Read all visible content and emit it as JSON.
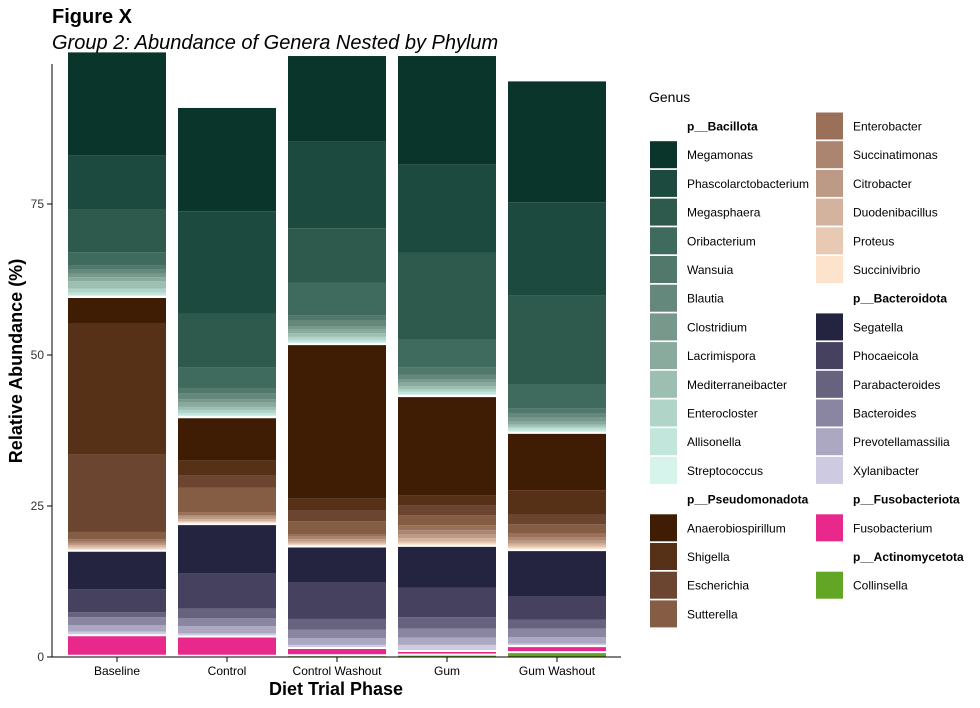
{
  "figure_tag": "Figure X",
  "chart_data": {
    "type": "bar",
    "stacked": true,
    "title": "Group 2: Abundance of Genera Nested by Phylum",
    "xlabel": "Diet Trial Phase",
    "ylabel": "Relative Abundance (%)",
    "ylim": [
      0,
      98
    ],
    "yticks": [
      0,
      25,
      50,
      75
    ],
    "grid": false,
    "legend_position": "right",
    "legend_title": "Genus",
    "categories": [
      "Baseline",
      "Control",
      "Control Washout",
      "Gum",
      "Gum Washout"
    ],
    "phyla": [
      {
        "name": "p__Bacillota",
        "genera": [
          {
            "name": "Megamonas",
            "color": "#09352a"
          },
          {
            "name": "Phascolarctobacterium",
            "color": "#1c4a3e"
          },
          {
            "name": "Megasphaera",
            "color": "#2e5a4e"
          },
          {
            "name": "Oribacterium",
            "color": "#3f6b5e"
          },
          {
            "name": "Wansuia",
            "color": "#52786c"
          },
          {
            "name": "Blautia",
            "color": "#65887c"
          },
          {
            "name": "Clostridium",
            "color": "#78988c"
          },
          {
            "name": "Lacrimispora",
            "color": "#89ab9d"
          },
          {
            "name": "Mediterraneibacter",
            "color": "#9cbfb2"
          },
          {
            "name": "Enterocloster",
            "color": "#b1d4c9"
          },
          {
            "name": "Allisonella",
            "color": "#c3e6dc"
          },
          {
            "name": "Streptococcus",
            "color": "#d6f4ec"
          }
        ]
      },
      {
        "name": "p__Pseudomonadota",
        "genera": [
          {
            "name": "Anaerobiospirillum",
            "color": "#3f1c04"
          },
          {
            "name": "Shigella",
            "color": "#573018"
          },
          {
            "name": "Escherichia",
            "color": "#6c4530"
          },
          {
            "name": "Sutterella",
            "color": "#855d45"
          },
          {
            "name": "Enterobacter",
            "color": "#9a7158"
          },
          {
            "name": "Succinatimonas",
            "color": "#ab8570"
          },
          {
            "name": "Citrobacter",
            "color": "#bd9a85"
          },
          {
            "name": "Duodenibacillus",
            "color": "#d3b29e"
          },
          {
            "name": "Proteus",
            "color": "#e8c9b4"
          },
          {
            "name": "Succinivibrio",
            "color": "#fde2cc"
          }
        ]
      },
      {
        "name": "p__Bacteroidota",
        "genera": [
          {
            "name": "Segatella",
            "color": "#242340"
          },
          {
            "name": "Phocaeicola",
            "color": "#46415e"
          },
          {
            "name": "Parabacteroides",
            "color": "#67627e"
          },
          {
            "name": "Bacteroides",
            "color": "#8a85a1"
          },
          {
            "name": "Prevotellamassilia",
            "color": "#ada8c2"
          },
          {
            "name": "Xylanibacter",
            "color": "#cdcae2"
          }
        ]
      },
      {
        "name": "p__Fusobacteriota",
        "genera": [
          {
            "name": "Fusobacterium",
            "color": "#e8288a"
          }
        ]
      },
      {
        "name": "p__Actinomycetota",
        "genera": [
          {
            "name": "Collinsella",
            "color": "#63a524"
          }
        ]
      }
    ],
    "series": {
      "Collinsella": [
        0.2,
        0.2,
        0.3,
        0.4,
        0.8
      ],
      "Fusobacterium": [
        3.4,
        3.2,
        1.2,
        0.6,
        1.0
      ],
      "Xylanibacter": [
        0.6,
        0.5,
        0.5,
        1.0,
        0.4
      ],
      "Prevotellamassilia": [
        1.1,
        1.2,
        1.1,
        1.2,
        1.1
      ],
      "Bacteroides": [
        1.3,
        1.3,
        1.4,
        1.5,
        1.4
      ],
      "Parabacteroides": [
        0.8,
        1.6,
        1.8,
        1.9,
        1.5
      ],
      "Phocaeicola": [
        3.8,
        5.9,
        6.0,
        4.9,
        3.9
      ],
      "Segatella": [
        6.4,
        8.1,
        6.0,
        6.9,
        7.6
      ],
      "Succinivibrio": [
        0.3,
        0.3,
        0.3,
        0.4,
        0.4
      ],
      "Proteus": [
        0.3,
        0.2,
        0.2,
        0.3,
        0.3
      ],
      "Duodenibacillus": [
        0.3,
        0.3,
        0.3,
        0.6,
        0.4
      ],
      "Citrobacter": [
        0.3,
        0.4,
        0.4,
        0.6,
        0.5
      ],
      "Succinatimonas": [
        0.3,
        0.3,
        0.4,
        0.7,
        0.5
      ],
      "Enterobacter": [
        0.4,
        0.5,
        0.4,
        0.8,
        0.6
      ],
      "Sutterella": [
        1.2,
        4.0,
        2.2,
        1.7,
        1.6
      ],
      "Escherichia": [
        12.8,
        2.0,
        1.7,
        1.6,
        1.6
      ],
      "Shigella": [
        21.8,
        2.5,
        2.0,
        1.6,
        4.0
      ],
      "Anaerobiospirillum": [
        4.3,
        7.2,
        25.6,
        16.5,
        9.5
      ],
      "Streptococcus": [
        0.3,
        0.3,
        0.3,
        0.3,
        0.3
      ],
      "Allisonella": [
        0.4,
        0.4,
        0.4,
        0.4,
        0.4
      ],
      "Enterocloster": [
        0.7,
        0.5,
        0.5,
        0.4,
        0.3
      ],
      "Mediterraneibacter": [
        1.2,
        0.5,
        0.6,
        0.5,
        0.4
      ],
      "Lacrimispora": [
        0.7,
        0.7,
        0.6,
        0.6,
        0.5
      ],
      "Clostridium": [
        0.6,
        0.6,
        0.6,
        0.5,
        0.6
      ],
      "Blautia": [
        0.6,
        0.9,
        0.9,
        0.8,
        0.7
      ],
      "Wansuia": [
        0.7,
        0.8,
        0.8,
        1.2,
        0.8
      ],
      "Oribacterium": [
        2.2,
        3.5,
        5.5,
        4.6,
        4.1
      ],
      "Megasphaera": [
        7.1,
        8.9,
        9.0,
        14.4,
        14.6
      ],
      "Phascolarctobacterium": [
        9.0,
        17.0,
        14.3,
        14.6,
        15.5
      ],
      "Megamonas": [
        17.0,
        17.1,
        14.2,
        18.0,
        20.0
      ]
    }
  }
}
